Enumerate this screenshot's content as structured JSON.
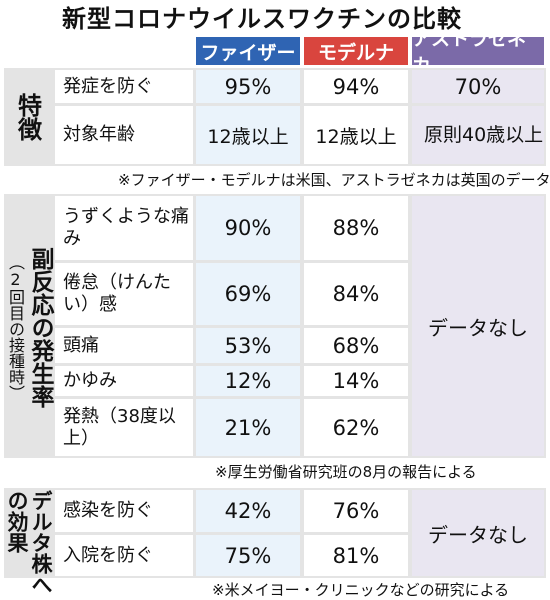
{
  "title": "新型コロナウイルスワクチンの比較",
  "colors": {
    "pfizer": "#2f64b3",
    "moderna": "#d9453e",
    "astrazeneca": "#7b6aa8"
  },
  "columns": [
    "ファイザー",
    "モデルナ",
    "アストラゼネカ"
  ],
  "section1": {
    "label": "特徴",
    "rows": [
      {
        "label": "発症を防ぐ",
        "pfizer": "95%",
        "moderna": "94%",
        "astrazeneca": "70%"
      },
      {
        "label": "対象年齢",
        "pfizer": "12歳以上",
        "moderna": "12歳以上",
        "astrazeneca": "原則40歳以上"
      }
    ],
    "note": "※ファイザー・モデルナは米国、アストラゼネカは英国のデータ"
  },
  "section2": {
    "label": "副反応の発生率",
    "sublabel": "（2回目の接種時）",
    "rows": [
      {
        "label": "うずくような痛み",
        "pfizer": "90%",
        "moderna": "88%"
      },
      {
        "label": "倦怠（けんたい）感",
        "pfizer": "69%",
        "moderna": "84%"
      },
      {
        "label": "頭痛",
        "pfizer": "53%",
        "moderna": "68%"
      },
      {
        "label": "かゆみ",
        "pfizer": "12%",
        "moderna": "14%"
      },
      {
        "label": "発熱（38度以上）",
        "pfizer": "21%",
        "moderna": "62%"
      }
    ],
    "nodata": "データなし",
    "note": "※厚生労働省研究班の8月の報告による"
  },
  "section3": {
    "label": "デルタ株への効果",
    "rows": [
      {
        "label": "感染を防ぐ",
        "pfizer": "42%",
        "moderna": "76%"
      },
      {
        "label": "入院を防ぐ",
        "pfizer": "75%",
        "moderna": "81%"
      }
    ],
    "nodata": "データなし",
    "note": "※米メイヨー・クリニックなどの研究による"
  }
}
